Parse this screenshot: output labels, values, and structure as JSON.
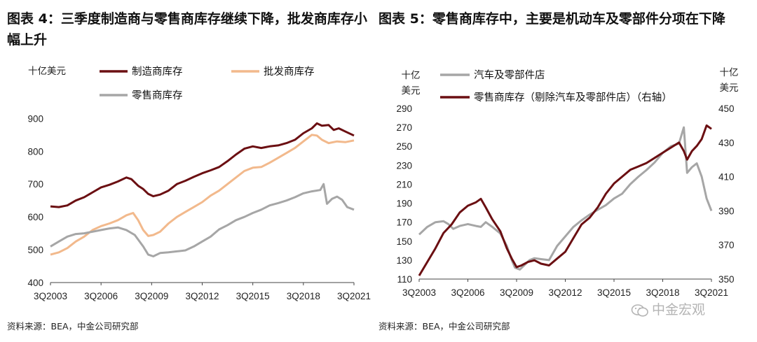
{
  "chart_data": [
    {
      "type": "line",
      "title": "图表 4：三季度制造商与零售商库存继续下降，批发商库存小幅上升",
      "ylabel": "十亿美元",
      "ylim": [
        400,
        920
      ],
      "yticks": [
        400,
        500,
        600,
        700,
        800,
        900
      ],
      "xlim": [
        2003.5,
        2021.5
      ],
      "xticks": [
        {
          "label": "3Q2003",
          "value": 2003.5
        },
        {
          "label": "3Q2006",
          "value": 2006.5
        },
        {
          "label": "3Q2009",
          "value": 2009.5
        },
        {
          "label": "3Q2012",
          "value": 2012.5
        },
        {
          "label": "3Q2015",
          "value": 2015.5
        },
        {
          "label": "3Q2018",
          "value": 2018.5
        },
        {
          "label": "3Q2021",
          "value": 2021.5
        }
      ],
      "source": "资料来源：BEA，中金公司研究部",
      "series": [
        {
          "name": "制造商库存",
          "color": "#6b0f12",
          "points": [
            [
              2003.5,
              632
            ],
            [
              2004.0,
              630
            ],
            [
              2004.5,
              635
            ],
            [
              2005.0,
              650
            ],
            [
              2005.5,
              660
            ],
            [
              2006.0,
              675
            ],
            [
              2006.5,
              690
            ],
            [
              2007.0,
              698
            ],
            [
              2007.5,
              708
            ],
            [
              2008.0,
              720
            ],
            [
              2008.3,
              715
            ],
            [
              2008.7,
              695
            ],
            [
              2009.0,
              685
            ],
            [
              2009.3,
              670
            ],
            [
              2009.6,
              663
            ],
            [
              2010.0,
              668
            ],
            [
              2010.5,
              680
            ],
            [
              2011.0,
              700
            ],
            [
              2011.5,
              710
            ],
            [
              2012.0,
              722
            ],
            [
              2012.5,
              733
            ],
            [
              2013.0,
              742
            ],
            [
              2013.5,
              752
            ],
            [
              2014.0,
              770
            ],
            [
              2014.5,
              790
            ],
            [
              2015.0,
              808
            ],
            [
              2015.5,
              815
            ],
            [
              2016.0,
              810
            ],
            [
              2016.5,
              815
            ],
            [
              2017.0,
              818
            ],
            [
              2017.5,
              825
            ],
            [
              2018.0,
              835
            ],
            [
              2018.5,
              855
            ],
            [
              2019.0,
              870
            ],
            [
              2019.3,
              885
            ],
            [
              2019.6,
              878
            ],
            [
              2020.0,
              880
            ],
            [
              2020.3,
              865
            ],
            [
              2020.6,
              870
            ],
            [
              2021.0,
              860
            ],
            [
              2021.5,
              848
            ]
          ]
        },
        {
          "name": "批发商库存",
          "color": "#f2b98c",
          "points": [
            [
              2003.5,
              485
            ],
            [
              2004.0,
              492
            ],
            [
              2004.5,
              505
            ],
            [
              2005.0,
              525
            ],
            [
              2005.5,
              540
            ],
            [
              2006.0,
              560
            ],
            [
              2006.5,
              572
            ],
            [
              2007.0,
              580
            ],
            [
              2007.5,
              590
            ],
            [
              2008.0,
              605
            ],
            [
              2008.4,
              612
            ],
            [
              2008.7,
              590
            ],
            [
              2009.0,
              560
            ],
            [
              2009.3,
              542
            ],
            [
              2009.6,
              545
            ],
            [
              2010.0,
              555
            ],
            [
              2010.5,
              580
            ],
            [
              2011.0,
              600
            ],
            [
              2011.5,
              615
            ],
            [
              2012.0,
              630
            ],
            [
              2012.5,
              645
            ],
            [
              2013.0,
              665
            ],
            [
              2013.5,
              680
            ],
            [
              2014.0,
              700
            ],
            [
              2014.5,
              720
            ],
            [
              2015.0,
              740
            ],
            [
              2015.5,
              750
            ],
            [
              2016.0,
              752
            ],
            [
              2016.5,
              765
            ],
            [
              2017.0,
              780
            ],
            [
              2017.5,
              795
            ],
            [
              2018.0,
              810
            ],
            [
              2018.5,
              830
            ],
            [
              2019.0,
              850
            ],
            [
              2019.3,
              848
            ],
            [
              2019.6,
              835
            ],
            [
              2020.0,
              825
            ],
            [
              2020.5,
              830
            ],
            [
              2021.0,
              828
            ],
            [
              2021.5,
              833
            ]
          ]
        },
        {
          "name": "零售商库存",
          "color": "#a6a6a6",
          "points": [
            [
              2003.5,
              510
            ],
            [
              2004.0,
              525
            ],
            [
              2004.5,
              540
            ],
            [
              2005.0,
              548
            ],
            [
              2005.5,
              550
            ],
            [
              2006.0,
              555
            ],
            [
              2006.5,
              560
            ],
            [
              2007.0,
              565
            ],
            [
              2007.5,
              568
            ],
            [
              2008.0,
              560
            ],
            [
              2008.5,
              545
            ],
            [
              2009.0,
              510
            ],
            [
              2009.3,
              485
            ],
            [
              2009.6,
              480
            ],
            [
              2010.0,
              490
            ],
            [
              2010.5,
              492
            ],
            [
              2011.0,
              495
            ],
            [
              2011.5,
              498
            ],
            [
              2012.0,
              510
            ],
            [
              2012.5,
              525
            ],
            [
              2013.0,
              540
            ],
            [
              2013.5,
              562
            ],
            [
              2014.0,
              575
            ],
            [
              2014.5,
              590
            ],
            [
              2015.0,
              600
            ],
            [
              2015.5,
              612
            ],
            [
              2016.0,
              622
            ],
            [
              2016.5,
              635
            ],
            [
              2017.0,
              642
            ],
            [
              2017.5,
              650
            ],
            [
              2018.0,
              660
            ],
            [
              2018.5,
              672
            ],
            [
              2019.0,
              678
            ],
            [
              2019.5,
              682
            ],
            [
              2019.7,
              700
            ],
            [
              2019.9,
              640
            ],
            [
              2020.2,
              655
            ],
            [
              2020.5,
              662
            ],
            [
              2020.8,
              652
            ],
            [
              2021.1,
              630
            ],
            [
              2021.5,
              622
            ]
          ]
        }
      ]
    },
    {
      "type": "line",
      "title": "图表 5：零售商库存中，主要是机动车及零部件分项在下降",
      "ylabel": "十亿美元",
      "y2label": "十亿美元",
      "ylim": [
        110,
        290
      ],
      "yticks": [
        110,
        130,
        150,
        170,
        190,
        210,
        230,
        250,
        270,
        290
      ],
      "y2lim": [
        350,
        450
      ],
      "y2ticks": [
        350,
        370,
        390,
        410,
        430,
        450
      ],
      "xlim": [
        2003.5,
        2021.5
      ],
      "xticks": [
        {
          "label": "3Q2003",
          "value": 2003.5
        },
        {
          "label": "3Q2006",
          "value": 2006.5
        },
        {
          "label": "3Q2009",
          "value": 2009.5
        },
        {
          "label": "3Q2012",
          "value": 2012.5
        },
        {
          "label": "3Q2015",
          "value": 2015.5
        },
        {
          "label": "3Q2018",
          "value": 2018.5
        },
        {
          "label": "3Q2021",
          "value": 2021.5
        }
      ],
      "source": "资料来源：BEA，中金公司研究部",
      "series": [
        {
          "name": "汽车及零部件店",
          "axis": "left",
          "color": "#a6a6a6",
          "points": [
            [
              2003.5,
              157
            ],
            [
              2004.0,
              165
            ],
            [
              2004.5,
              170
            ],
            [
              2005.0,
              171
            ],
            [
              2005.3,
              168
            ],
            [
              2005.6,
              163
            ],
            [
              2006.0,
              166
            ],
            [
              2006.5,
              168
            ],
            [
              2007.0,
              166
            ],
            [
              2007.3,
              165
            ],
            [
              2007.6,
              170
            ],
            [
              2008.0,
              165
            ],
            [
              2008.5,
              158
            ],
            [
              2008.9,
              145
            ],
            [
              2009.2,
              130
            ],
            [
              2009.4,
              122
            ],
            [
              2009.7,
              120
            ],
            [
              2010.0,
              125
            ],
            [
              2010.3,
              130
            ],
            [
              2010.6,
              132
            ],
            [
              2011.0,
              131
            ],
            [
              2011.5,
              130
            ],
            [
              2012.0,
              145
            ],
            [
              2012.5,
              155
            ],
            [
              2013.0,
              165
            ],
            [
              2013.5,
              172
            ],
            [
              2014.0,
              178
            ],
            [
              2014.5,
              183
            ],
            [
              2015.0,
              188
            ],
            [
              2015.5,
              195
            ],
            [
              2016.0,
              200
            ],
            [
              2016.5,
              210
            ],
            [
              2017.0,
              218
            ],
            [
              2017.5,
              225
            ],
            [
              2018.0,
              233
            ],
            [
              2018.5,
              243
            ],
            [
              2019.0,
              250
            ],
            [
              2019.5,
              253
            ],
            [
              2019.8,
              270
            ],
            [
              2020.0,
              222
            ],
            [
              2020.3,
              228
            ],
            [
              2020.6,
              232
            ],
            [
              2020.9,
              218
            ],
            [
              2021.2,
              195
            ],
            [
              2021.5,
              182
            ]
          ]
        },
        {
          "name": "零售商库存（剔除汽车及零部件店）（右轴）",
          "axis": "right",
          "color": "#6b0f12",
          "points": [
            [
              2003.5,
              352
            ],
            [
              2004.0,
              360
            ],
            [
              2004.5,
              368
            ],
            [
              2005.0,
              377
            ],
            [
              2005.5,
              382
            ],
            [
              2006.0,
              389
            ],
            [
              2006.5,
              393
            ],
            [
              2007.0,
              395
            ],
            [
              2007.3,
              397
            ],
            [
              2007.6,
              392
            ],
            [
              2008.0,
              385
            ],
            [
              2008.5,
              378
            ],
            [
              2008.9,
              368
            ],
            [
              2009.2,
              362
            ],
            [
              2009.5,
              357
            ],
            [
              2009.8,
              358
            ],
            [
              2010.2,
              360
            ],
            [
              2010.6,
              361
            ],
            [
              2011.0,
              359
            ],
            [
              2011.5,
              358
            ],
            [
              2012.0,
              362
            ],
            [
              2012.5,
              366
            ],
            [
              2013.0,
              374
            ],
            [
              2013.5,
              382
            ],
            [
              2014.0,
              386
            ],
            [
              2014.5,
              392
            ],
            [
              2015.0,
              400
            ],
            [
              2015.5,
              406
            ],
            [
              2016.0,
              410
            ],
            [
              2016.5,
              414
            ],
            [
              2017.0,
              416
            ],
            [
              2017.5,
              418
            ],
            [
              2018.0,
              421
            ],
            [
              2018.5,
              424
            ],
            [
              2019.0,
              427
            ],
            [
              2019.5,
              430
            ],
            [
              2019.8,
              425
            ],
            [
              2020.0,
              420
            ],
            [
              2020.3,
              425
            ],
            [
              2020.6,
              428
            ],
            [
              2020.9,
              432
            ],
            [
              2021.2,
              440
            ],
            [
              2021.5,
              438
            ]
          ]
        }
      ]
    }
  ],
  "watermark": "中金宏观"
}
